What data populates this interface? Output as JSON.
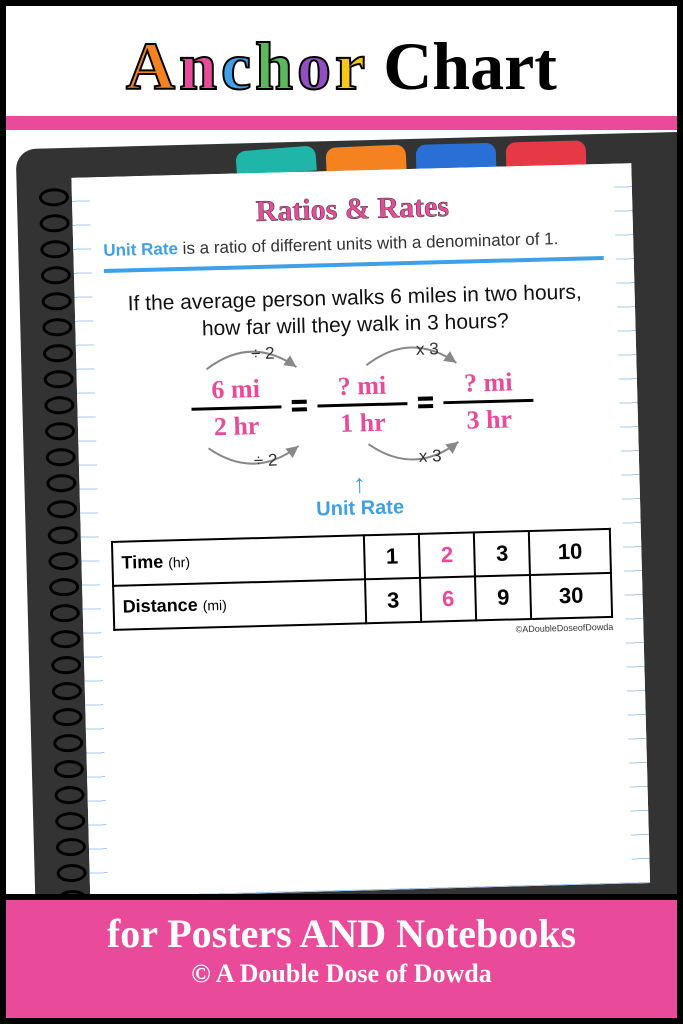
{
  "colors": {
    "pink": "#e94b9a",
    "blue": "#3fa0e8",
    "orange": "#f58220",
    "red": "#e63946",
    "teal": "#1fb5a8",
    "green": "#5cb85c",
    "purple": "#9050c0",
    "yellow": "#f5c518",
    "dark": "#333333",
    "footer_bg": "#e94b9a"
  },
  "header": {
    "letters": [
      {
        "ch": "A",
        "color": "#f58220"
      },
      {
        "ch": "n",
        "color": "#e94b9a"
      },
      {
        "ch": "c",
        "color": "#3fa0e8"
      },
      {
        "ch": "h",
        "color": "#5cb85c"
      },
      {
        "ch": "o",
        "color": "#9050c0"
      },
      {
        "ch": "r",
        "color": "#f5c518"
      }
    ],
    "chart_word": "Chart"
  },
  "tabs": [
    {
      "color": "#1fb5a8"
    },
    {
      "color": "#f58220"
    },
    {
      "color": "#2a6fd6"
    },
    {
      "color": "#e63946"
    }
  ],
  "page": {
    "title": "Ratios & Rates",
    "title_color": "#e94b9a",
    "definition_term": "Unit Rate",
    "definition_term_color": "#3fa0e8",
    "definition_text": " is a ratio of different units with a denominator of 1.",
    "question": "If the average person walks 6 miles in two hours, how far will they walk in 3 hours?",
    "equation": {
      "text_color": "#e94b9a",
      "f1_num": "6 mi",
      "f1_den": "2 hr",
      "f2_num": "? mi",
      "f2_den": "1 hr",
      "f3_num": "? mi",
      "f3_den": "3 hr",
      "op_top_1": "÷ 2",
      "op_top_2": "x 3",
      "op_bot_1": "÷ 2",
      "op_bot_2": "x 3"
    },
    "unit_rate_label": "Unit Rate",
    "unit_rate_color": "#3fa0e8",
    "table": {
      "rows": [
        {
          "label": "Time",
          "unit": "(hr)",
          "values": [
            "1",
            "2",
            "3",
            "10"
          ],
          "highlight_index": 1
        },
        {
          "label": "Distance",
          "unit": "(mi)",
          "values": [
            "3",
            "6",
            "9",
            "30"
          ],
          "highlight_index": 1
        }
      ],
      "highlight_color": "#e94b9a"
    },
    "credit": "©ADoubleDoseofDowda"
  },
  "footer": {
    "main": "for Posters AND Notebooks",
    "sub": "© A Double Dose of Dowda"
  }
}
